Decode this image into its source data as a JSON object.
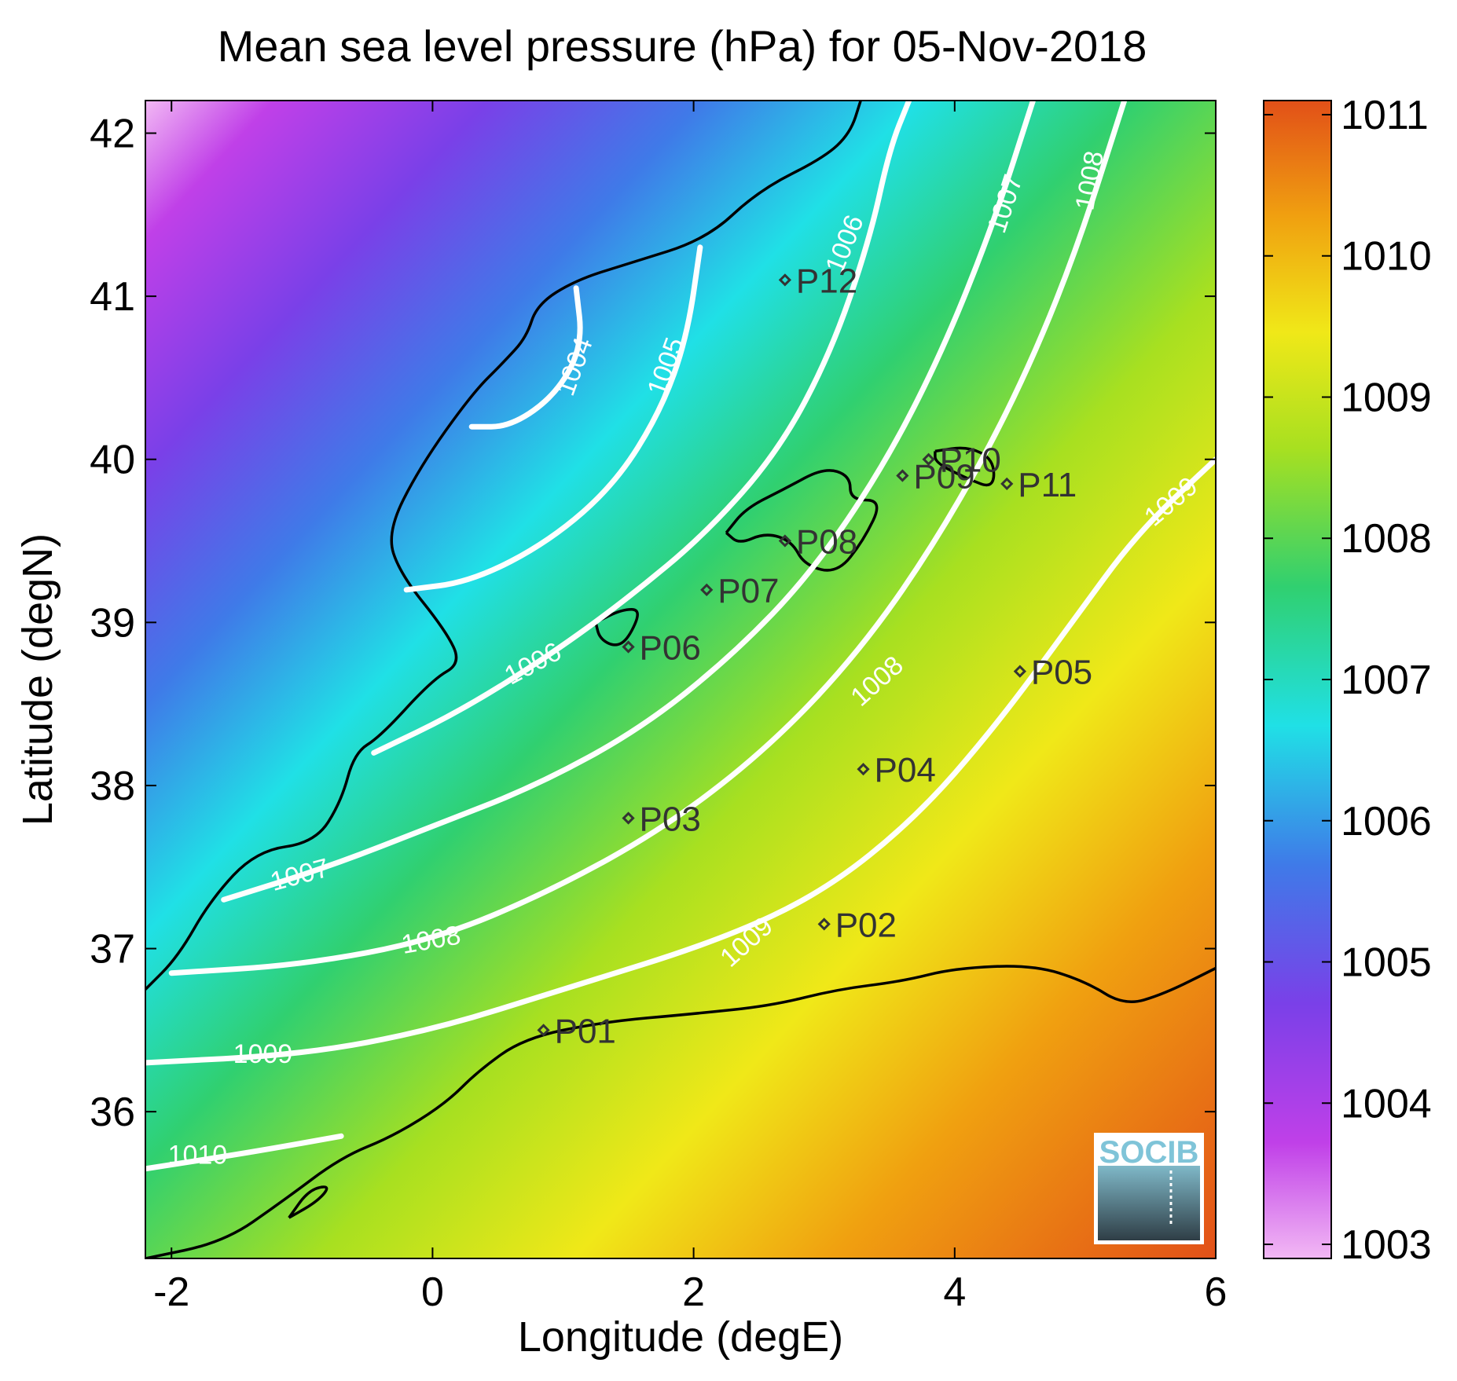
{
  "chart_data": {
    "type": "heatmap",
    "title": "Mean sea level pressure (hPa) for 05-Nov-2018",
    "xlabel": "Longitude (degE)",
    "ylabel": "Latitude (degN)",
    "xlim": [
      -2.2,
      6.0
    ],
    "ylim": [
      35.1,
      42.2
    ],
    "x_ticks": [
      -2,
      0,
      2,
      4,
      6
    ],
    "y_ticks": [
      36,
      37,
      38,
      39,
      40,
      41,
      42
    ],
    "colorbar": {
      "ticks": [
        1003,
        1004,
        1005,
        1006,
        1007,
        1008,
        1009,
        1010,
        1011
      ],
      "range": [
        1002.9,
        1011.1
      ],
      "colors": [
        "#f2b8f4",
        "#c040e8",
        "#7a40e8",
        "#3f7ae8",
        "#20e0e6",
        "#30d070",
        "#a8e020",
        "#f0e818",
        "#f0a010",
        "#e25018"
      ]
    },
    "contours": [
      {
        "label": "1004",
        "points": [
          [
            0.3,
            40.2
          ],
          [
            0.6,
            40.2
          ],
          [
            0.95,
            40.4
          ],
          [
            1.15,
            40.7
          ],
          [
            1.1,
            41.05
          ]
        ]
      },
      {
        "label": "1005",
        "points": [
          [
            -0.2,
            39.2
          ],
          [
            0.3,
            39.25
          ],
          [
            0.9,
            39.5
          ],
          [
            1.4,
            39.85
          ],
          [
            1.75,
            40.3
          ],
          [
            1.95,
            40.75
          ],
          [
            2.05,
            41.3
          ]
        ]
      },
      {
        "label": "1006",
        "points": [
          [
            -0.45,
            38.2
          ],
          [
            0.2,
            38.45
          ],
          [
            0.9,
            38.8
          ],
          [
            1.5,
            39.15
          ],
          [
            2.1,
            39.55
          ],
          [
            2.65,
            40.05
          ],
          [
            3.05,
            40.65
          ],
          [
            3.35,
            41.35
          ],
          [
            3.5,
            41.9
          ],
          [
            3.65,
            42.2
          ]
        ]
      },
      {
        "label": "1007",
        "points": [
          [
            -1.6,
            37.3
          ],
          [
            -0.8,
            37.5
          ],
          [
            0.0,
            37.75
          ],
          [
            0.8,
            38.0
          ],
          [
            1.6,
            38.35
          ],
          [
            2.3,
            38.8
          ],
          [
            2.9,
            39.3
          ],
          [
            3.45,
            39.95
          ],
          [
            3.9,
            40.65
          ],
          [
            4.3,
            41.45
          ],
          [
            4.6,
            42.2
          ]
        ]
      },
      {
        "label": "1008",
        "points": [
          [
            -2.0,
            36.85
          ],
          [
            -1.0,
            36.9
          ],
          [
            0.0,
            37.05
          ],
          [
            0.9,
            37.35
          ],
          [
            1.8,
            37.75
          ],
          [
            2.6,
            38.25
          ],
          [
            3.3,
            38.85
          ],
          [
            3.9,
            39.55
          ],
          [
            4.45,
            40.35
          ],
          [
            4.9,
            41.2
          ],
          [
            5.3,
            42.2
          ]
        ]
      },
      {
        "label": "1009",
        "points": [
          [
            -2.2,
            36.3
          ],
          [
            -1.0,
            36.35
          ],
          [
            0.0,
            36.5
          ],
          [
            1.0,
            36.75
          ],
          [
            2.2,
            37.05
          ],
          [
            3.0,
            37.35
          ],
          [
            3.7,
            37.8
          ],
          [
            4.3,
            38.35
          ],
          [
            4.9,
            39.0
          ],
          [
            5.4,
            39.55
          ],
          [
            6.0,
            40.0
          ]
        ]
      },
      {
        "label": "1010",
        "points": [
          [
            -2.2,
            35.65
          ],
          [
            -1.4,
            35.75
          ],
          [
            -0.7,
            35.85
          ]
        ]
      }
    ],
    "contour_label_positions": [
      {
        "label": "1004",
        "lon": 1.15,
        "lat": 40.55,
        "angle": -70
      },
      {
        "label": "1005",
        "lon": 1.85,
        "lat": 40.55,
        "angle": -70
      },
      {
        "label": "1006",
        "lon": 0.8,
        "lat": 38.7,
        "angle": -28
      },
      {
        "label": "1006",
        "lon": 3.22,
        "lat": 41.3,
        "angle": -68
      },
      {
        "label": "1007",
        "lon": -1.0,
        "lat": 37.4,
        "angle": -15
      },
      {
        "label": "1007",
        "lon": 4.45,
        "lat": 41.55,
        "angle": -72
      },
      {
        "label": "1008",
        "lon": 0.0,
        "lat": 37.0,
        "angle": -10
      },
      {
        "label": "1008",
        "lon": 3.45,
        "lat": 38.6,
        "angle": -42
      },
      {
        "label": "1008",
        "lon": 5.1,
        "lat": 41.7,
        "angle": -80
      },
      {
        "label": "1009",
        "lon": -1.3,
        "lat": 36.3,
        "angle": 0
      },
      {
        "label": "1009",
        "lon": 2.45,
        "lat": 37.0,
        "angle": -42
      },
      {
        "label": "1009",
        "lon": 5.7,
        "lat": 39.7,
        "angle": -40
      },
      {
        "label": "1010",
        "lon": -1.8,
        "lat": 35.68,
        "angle": 0
      }
    ],
    "stations": [
      {
        "name": "P01",
        "lon": 0.85,
        "lat": 36.5
      },
      {
        "name": "P02",
        "lon": 3.0,
        "lat": 37.15
      },
      {
        "name": "P03",
        "lon": 1.5,
        "lat": 37.8
      },
      {
        "name": "P04",
        "lon": 3.3,
        "lat": 38.1
      },
      {
        "name": "P05",
        "lon": 4.5,
        "lat": 38.7
      },
      {
        "name": "P06",
        "lon": 1.5,
        "lat": 38.85
      },
      {
        "name": "P07",
        "lon": 2.1,
        "lat": 39.2
      },
      {
        "name": "P08",
        "lon": 2.7,
        "lat": 39.5
      },
      {
        "name": "P09",
        "lon": 3.6,
        "lat": 39.9
      },
      {
        "name": "P10",
        "lon": 3.8,
        "lat": 40.0
      },
      {
        "name": "P11",
        "lon": 4.4,
        "lat": 39.85
      },
      {
        "name": "P12",
        "lon": 2.7,
        "lat": 41.1
      }
    ],
    "coastlines": [
      [
        [
          -2.2,
          36.75
        ],
        [
          -1.95,
          36.95
        ],
        [
          -1.7,
          37.3
        ],
        [
          -1.35,
          37.6
        ],
        [
          -0.9,
          37.65
        ],
        [
          -0.7,
          37.9
        ],
        [
          -0.6,
          38.2
        ],
        [
          -0.4,
          38.3
        ],
        [
          0.0,
          38.65
        ],
        [
          0.22,
          38.75
        ],
        [
          0.1,
          38.95
        ],
        [
          -0.25,
          39.3
        ],
        [
          -0.35,
          39.55
        ],
        [
          -0.1,
          39.95
        ],
        [
          0.3,
          40.4
        ],
        [
          0.55,
          40.6
        ],
        [
          0.72,
          40.75
        ],
        [
          0.8,
          40.95
        ],
        [
          1.1,
          41.1
        ],
        [
          1.5,
          41.2
        ],
        [
          2.1,
          41.35
        ],
        [
          2.5,
          41.65
        ],
        [
          3.0,
          41.85
        ],
        [
          3.2,
          42.0
        ],
        [
          3.28,
          42.2
        ]
      ],
      [
        [
          -2.2,
          35.1
        ],
        [
          -1.6,
          35.2
        ],
        [
          -1.15,
          35.45
        ],
        [
          -0.7,
          35.72
        ],
        [
          -0.3,
          35.85
        ],
        [
          0.1,
          36.05
        ],
        [
          0.35,
          36.25
        ],
        [
          0.7,
          36.45
        ],
        [
          1.3,
          36.55
        ],
        [
          2.0,
          36.6
        ],
        [
          2.6,
          36.65
        ],
        [
          3.1,
          36.75
        ],
        [
          3.6,
          36.8
        ],
        [
          4.0,
          36.88
        ],
        [
          4.6,
          36.9
        ],
        [
          5.0,
          36.8
        ],
        [
          5.3,
          36.65
        ],
        [
          5.6,
          36.72
        ],
        [
          6.0,
          36.88
        ]
      ],
      [
        [
          2.25,
          39.55
        ],
        [
          2.4,
          39.7
        ],
        [
          2.7,
          39.82
        ],
        [
          3.0,
          39.95
        ],
        [
          3.2,
          39.9
        ],
        [
          3.2,
          39.75
        ],
        [
          3.45,
          39.75
        ],
        [
          3.3,
          39.5
        ],
        [
          3.1,
          39.3
        ],
        [
          2.85,
          39.35
        ],
        [
          2.75,
          39.5
        ],
        [
          2.55,
          39.55
        ],
        [
          2.35,
          39.48
        ],
        [
          2.25,
          39.55
        ]
      ],
      [
        [
          3.85,
          40.05
        ],
        [
          4.1,
          40.08
        ],
        [
          4.3,
          40.0
        ],
        [
          4.3,
          39.82
        ],
        [
          4.1,
          39.88
        ],
        [
          3.85,
          39.98
        ],
        [
          3.85,
          40.05
        ]
      ],
      [
        [
          1.25,
          39.0
        ],
        [
          1.45,
          39.08
        ],
        [
          1.6,
          39.08
        ],
        [
          1.5,
          38.9
        ],
        [
          1.4,
          38.85
        ],
        [
          1.28,
          38.9
        ],
        [
          1.25,
          39.0
        ]
      ],
      [
        [
          -1.1,
          35.35
        ],
        [
          -0.88,
          35.45
        ],
        [
          -0.78,
          35.55
        ],
        [
          -0.95,
          35.52
        ],
        [
          -1.1,
          35.35
        ]
      ]
    ],
    "logo_text": "SOCIB"
  }
}
